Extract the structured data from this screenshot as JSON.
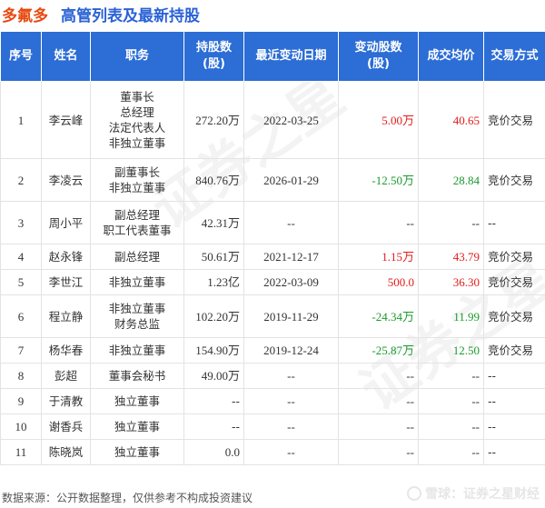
{
  "header": {
    "company": "多氟多",
    "title": "高管列表及最新持股"
  },
  "table": {
    "columns": [
      "序号",
      "姓名",
      "职务",
      "持股数\n(股)",
      "最近变动日期",
      "变动股数\n(股)",
      "成交均价",
      "交易方式"
    ],
    "rows": [
      {
        "idx": "1",
        "name": "李云峰",
        "positions": [
          "董事长",
          "总经理",
          "法定代表人",
          "非独立董事"
        ],
        "hold": "272.20万",
        "date": "2022-03-25",
        "chg": "5.00万",
        "chg_dir": "up",
        "price": "40.65",
        "price_dir": "up",
        "way": "竞价交易"
      },
      {
        "idx": "2",
        "name": "李凌云",
        "positions": [
          "副董事长",
          "非独立董事"
        ],
        "hold": "840.76万",
        "date": "2026-01-29",
        "chg": "-12.50万",
        "chg_dir": "down",
        "price": "28.84",
        "price_dir": "down",
        "way": "竞价交易"
      },
      {
        "idx": "3",
        "name": "周小平",
        "positions": [
          "副总经理",
          "职工代表董事"
        ],
        "hold": "42.31万",
        "date": "--",
        "chg": "--",
        "chg_dir": "",
        "price": "--",
        "price_dir": "",
        "way": "--"
      },
      {
        "idx": "4",
        "name": "赵永锋",
        "positions": [
          "副总经理"
        ],
        "hold": "50.61万",
        "date": "2021-12-17",
        "chg": "1.15万",
        "chg_dir": "up",
        "price": "43.79",
        "price_dir": "up",
        "way": "竞价交易"
      },
      {
        "idx": "5",
        "name": "李世江",
        "positions": [
          "非独立董事"
        ],
        "hold": "1.23亿",
        "date": "2022-03-09",
        "chg": "500.0",
        "chg_dir": "up",
        "price": "36.30",
        "price_dir": "up",
        "way": "竞价交易"
      },
      {
        "idx": "6",
        "name": "程立静",
        "positions": [
          "非独立董事",
          "财务总监"
        ],
        "hold": "102.20万",
        "date": "2019-11-29",
        "chg": "-24.34万",
        "chg_dir": "down",
        "price": "11.99",
        "price_dir": "down",
        "way": "竞价交易"
      },
      {
        "idx": "7",
        "name": "杨华春",
        "positions": [
          "非独立董事"
        ],
        "hold": "154.90万",
        "date": "2019-12-24",
        "chg": "-25.87万",
        "chg_dir": "down",
        "price": "12.50",
        "price_dir": "down",
        "way": "竞价交易"
      },
      {
        "idx": "8",
        "name": "彭超",
        "positions": [
          "董事会秘书"
        ],
        "hold": "49.00万",
        "date": "--",
        "chg": "--",
        "chg_dir": "",
        "price": "--",
        "price_dir": "",
        "way": "--"
      },
      {
        "idx": "9",
        "name": "于清教",
        "positions": [
          "独立董事"
        ],
        "hold": "--",
        "date": "--",
        "chg": "--",
        "chg_dir": "",
        "price": "--",
        "price_dir": "",
        "way": "--"
      },
      {
        "idx": "10",
        "name": "谢香兵",
        "positions": [
          "独立董事"
        ],
        "hold": "--",
        "date": "--",
        "chg": "--",
        "chg_dir": "",
        "price": "--",
        "price_dir": "",
        "way": "--"
      },
      {
        "idx": "11",
        "name": "陈晓岚",
        "positions": [
          "独立董事"
        ],
        "hold": "0.0",
        "date": "--",
        "chg": "--",
        "chg_dir": "",
        "price": "--",
        "price_dir": "",
        "way": "--"
      }
    ]
  },
  "footer": {
    "source": "数据来源：公开数据整理，仅供参考不构成投资建议",
    "brand": "雪球：证券之星财经"
  },
  "watermark": "证券之星",
  "colors": {
    "header_bg": "#2c6dd6",
    "up": "#e31a1a",
    "down": "#1a9a2d",
    "company": "#e8490f",
    "title": "#2a62d6"
  }
}
